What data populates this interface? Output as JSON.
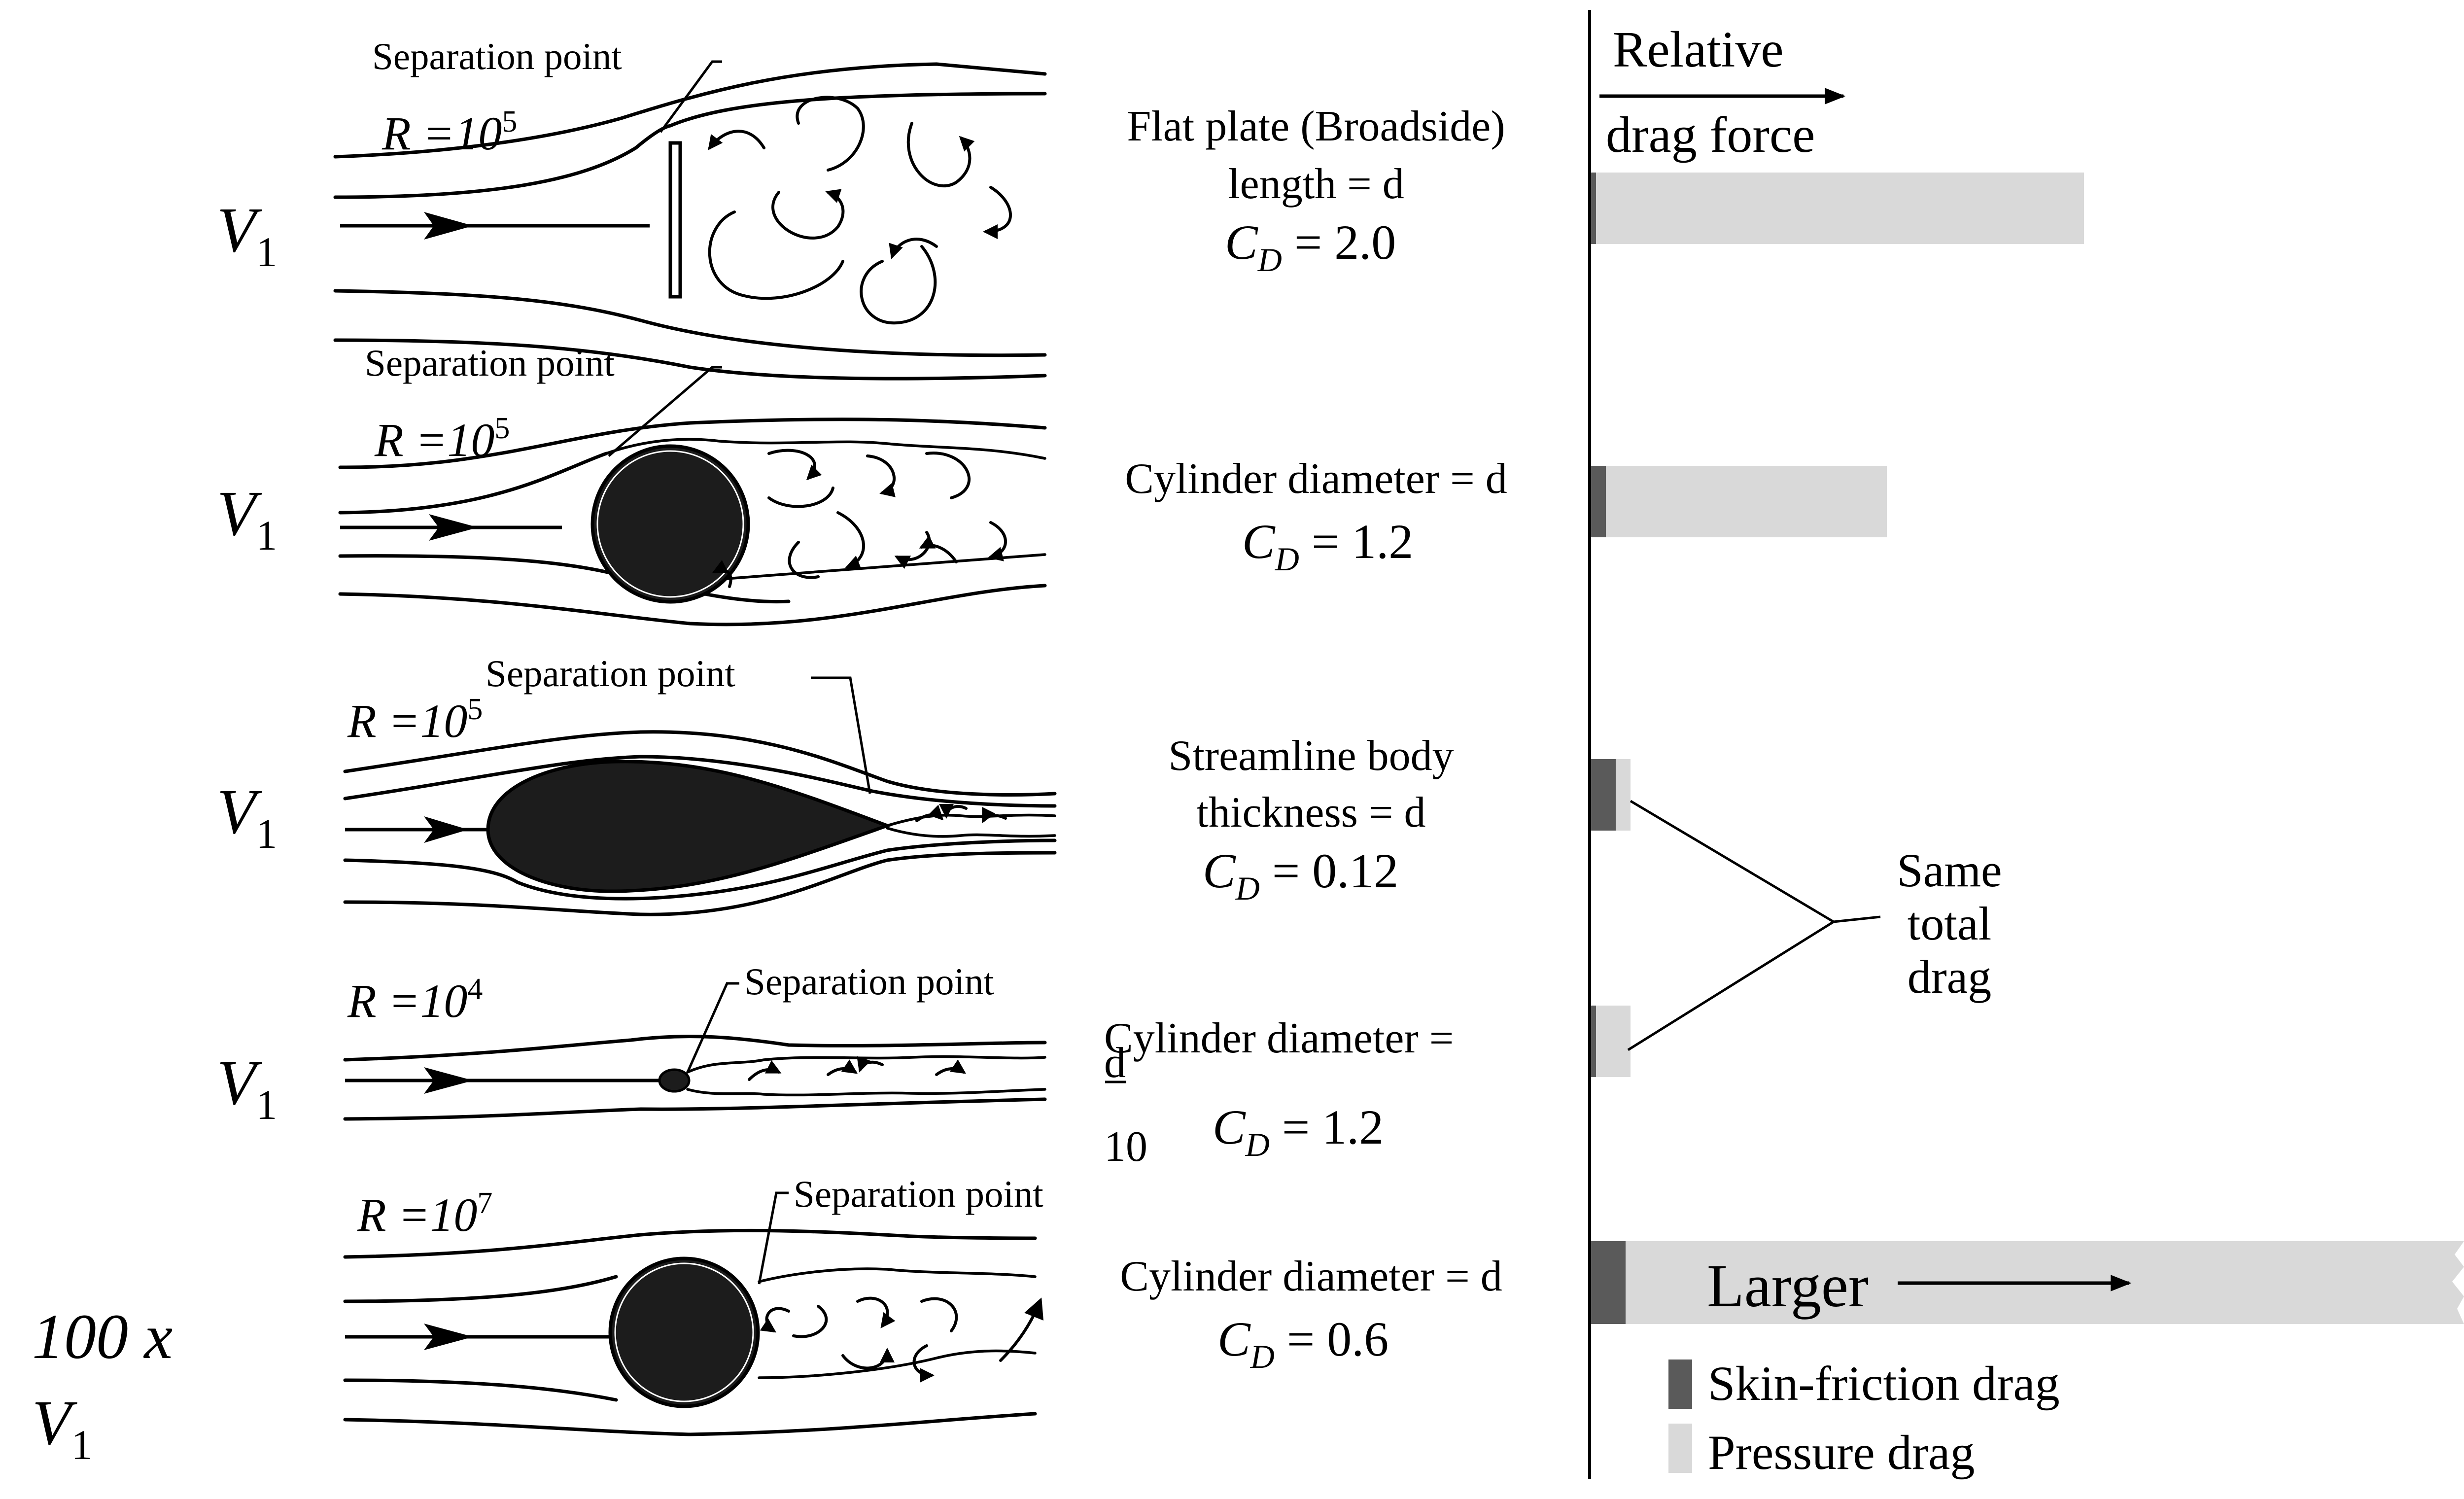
{
  "cases": [
    {
      "separation_label": "Separation point",
      "reynolds_symbol": "R",
      "reynolds_equals": " =10",
      "reynolds_exp": "5",
      "velocity_symbol": "V",
      "velocity_sub": "1",
      "description_lines": [
        "Flat plate (Broadside)",
        "length = d"
      ],
      "cd_symbol": "C",
      "cd_sub": "D",
      "cd_value": " = 2.0",
      "skin_friction": 0.01,
      "pressure_drag": 0.99
    },
    {
      "separation_label": "Separation point",
      "reynolds_symbol": "R",
      "reynolds_equals": " =10",
      "reynolds_exp": "5",
      "velocity_symbol": "V",
      "velocity_sub": "1",
      "description_lines": [
        "Cylinder diameter = d"
      ],
      "cd_symbol": "C",
      "cd_sub": "D",
      "cd_value": " = 1.2",
      "skin_friction": 0.03,
      "pressure_drag": 0.57
    },
    {
      "separation_label": "Separation point",
      "reynolds_symbol": "R",
      "reynolds_equals": " =10",
      "reynolds_exp": "5",
      "velocity_symbol": "V",
      "velocity_sub": "1",
      "description_lines": [
        "Streamline body",
        "thickness = d"
      ],
      "cd_symbol": "C",
      "cd_sub": "D",
      "cd_value": " = 0.12",
      "skin_friction": 0.05,
      "pressure_drag": 0.03
    },
    {
      "separation_label": "Separation point",
      "reynolds_symbol": "R",
      "reynolds_equals": " =10",
      "reynolds_exp": "4",
      "velocity_symbol": "V",
      "velocity_sub": "1",
      "description_lines": [
        "Cylinder diameter ="
      ],
      "fraction_numerator": "d",
      "fraction_denominator": "10",
      "cd_symbol": "C",
      "cd_sub": "D",
      "cd_value": " = 1.2",
      "skin_friction": 0.01,
      "pressure_drag": 0.07
    },
    {
      "separation_label": "Separation point",
      "reynolds_symbol": "R",
      "reynolds_equals": " =10",
      "reynolds_exp": "7",
      "velocity_prefix": "100 x",
      "velocity_symbol": "V",
      "velocity_sub": "1",
      "description_lines": [
        "Cylinder diameter = d"
      ],
      "cd_symbol": "C",
      "cd_sub": "D",
      "cd_value": " = 0.6",
      "bar_continues": true,
      "bar_label": "Larger"
    }
  ],
  "header": {
    "line1": "Relative",
    "line2": "drag force"
  },
  "annotation": {
    "lines": [
      "Same",
      "total",
      "drag"
    ]
  },
  "legend": [
    {
      "label": "Skin-friction drag",
      "color": "#5a5a5a"
    },
    {
      "label": "Pressure drag",
      "color": "#d9d9d9"
    }
  ]
}
